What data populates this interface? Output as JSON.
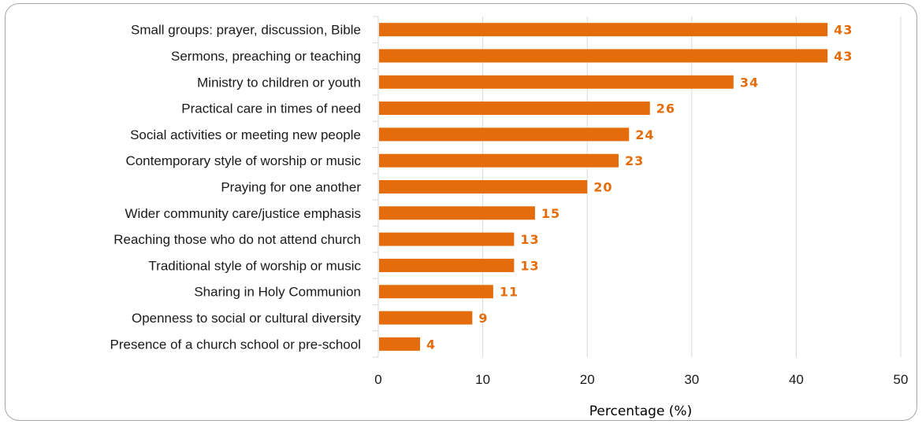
{
  "chart_data": {
    "type": "bar",
    "orientation": "horizontal",
    "categories": [
      "Small groups: prayer, discussion, Bible",
      "Sermons, preaching or teaching",
      "Ministry to children or youth",
      "Practical care in times of need",
      "Social activities or meeting new people",
      "Contemporary style of worship or music",
      "Praying for one another",
      "Wider community care/justice emphasis",
      "Reaching those who do not attend church",
      "Traditional style of worship or music",
      "Sharing in Holy Communion",
      "Openness to social or cultural diversity",
      "Presence of a church school or pre-school"
    ],
    "values": [
      43,
      43,
      34,
      26,
      24,
      23,
      20,
      15,
      13,
      13,
      11,
      9,
      4
    ],
    "data_labels": [
      "43",
      "43",
      "34",
      "26",
      "24",
      "23",
      "20",
      "15",
      "13",
      "13",
      "11",
      "9",
      "4"
    ],
    "xlabel": "Percentage (%)",
    "xlim": [
      0,
      50
    ],
    "xticks": [
      0,
      10,
      20,
      30,
      40,
      50
    ],
    "xtick_labels": [
      "0",
      "10",
      "20",
      "30",
      "40",
      "50"
    ],
    "grid": "vertical",
    "legend": "none",
    "bar_color": "#e46c0a",
    "label_color": "#e46c0a",
    "grid_color": "#d9d9d9"
  }
}
